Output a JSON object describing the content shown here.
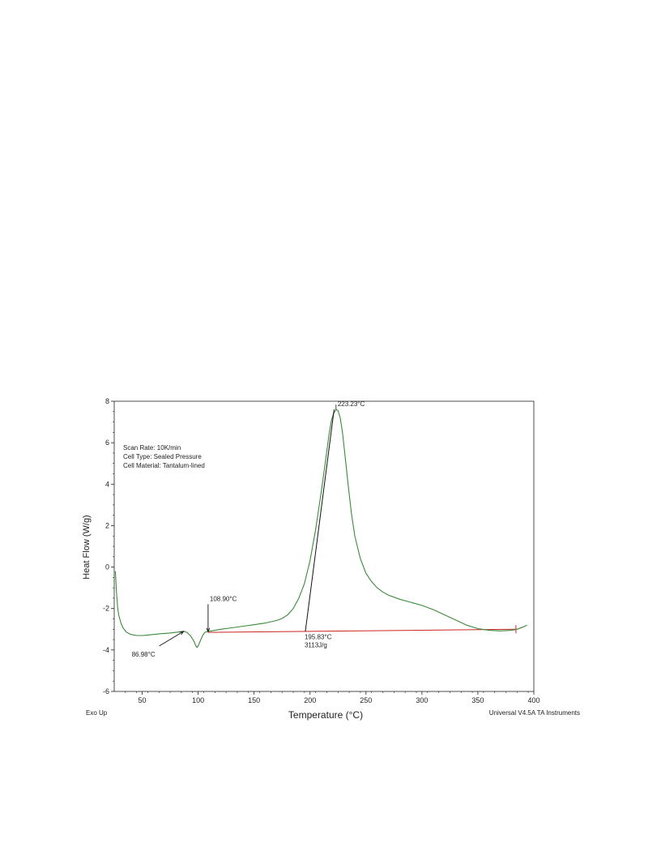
{
  "chart_data": {
    "type": "line",
    "xlabel": "Temperature (°C)",
    "ylabel": "Heat Flow (W/g)",
    "xlim": [
      25,
      400
    ],
    "ylim": [
      -6,
      8
    ],
    "x_ticks": [
      50,
      100,
      150,
      200,
      250,
      300,
      350,
      400
    ],
    "y_ticks": [
      -6,
      -4,
      -2,
      0,
      2,
      4,
      6,
      8
    ],
    "info_text": [
      "Scan Rate: 10K/min",
      "Cell Type: Sealed Pressure",
      "Cell Material: Tantalum-lined"
    ],
    "footer_left": "Exo Up",
    "footer_right": "Universal V4.5A TA Instruments",
    "colors": {
      "curve": "#3a8a3a",
      "ylabel": "#3a8a3a",
      "baseline": "#cc2222",
      "annotation": "#111111"
    },
    "series": [
      {
        "points": [
          [
            26,
            -0.2
          ],
          [
            27,
            -1.2
          ],
          [
            28,
            -1.9
          ],
          [
            29,
            -2.3
          ],
          [
            31,
            -2.7
          ],
          [
            33,
            -2.95
          ],
          [
            36,
            -3.15
          ],
          [
            40,
            -3.25
          ],
          [
            45,
            -3.3
          ],
          [
            50,
            -3.3
          ],
          [
            55,
            -3.28
          ],
          [
            60,
            -3.25
          ],
          [
            65,
            -3.22
          ],
          [
            70,
            -3.2
          ],
          [
            75,
            -3.18
          ],
          [
            80,
            -3.15
          ],
          [
            85,
            -3.12
          ],
          [
            87,
            -3.1
          ],
          [
            90,
            -3.15
          ],
          [
            93,
            -3.3
          ],
          [
            96,
            -3.55
          ],
          [
            98,
            -3.8
          ],
          [
            99,
            -3.88
          ],
          [
            100,
            -3.8
          ],
          [
            102,
            -3.55
          ],
          [
            104,
            -3.3
          ],
          [
            106,
            -3.15
          ],
          [
            108.9,
            -3.1
          ],
          [
            112,
            -3.08
          ],
          [
            120,
            -3.0
          ],
          [
            130,
            -2.93
          ],
          [
            140,
            -2.85
          ],
          [
            150,
            -2.78
          ],
          [
            160,
            -2.7
          ],
          [
            170,
            -2.58
          ],
          [
            175,
            -2.48
          ],
          [
            180,
            -2.3
          ],
          [
            185,
            -2.0
          ],
          [
            190,
            -1.5
          ],
          [
            195,
            -0.8
          ],
          [
            200,
            0.3
          ],
          [
            205,
            1.8
          ],
          [
            210,
            3.6
          ],
          [
            214,
            5.2
          ],
          [
            217,
            6.4
          ],
          [
            219,
            7.05
          ],
          [
            221,
            7.4
          ],
          [
            223.23,
            7.6
          ],
          [
            225,
            7.55
          ],
          [
            227,
            7.2
          ],
          [
            229,
            6.5
          ],
          [
            231,
            5.5
          ],
          [
            234,
            4.0
          ],
          [
            237,
            2.6
          ],
          [
            240,
            1.5
          ],
          [
            245,
            0.4
          ],
          [
            250,
            -0.3
          ],
          [
            255,
            -0.7
          ],
          [
            260,
            -1.0
          ],
          [
            265,
            -1.2
          ],
          [
            270,
            -1.35
          ],
          [
            280,
            -1.55
          ],
          [
            290,
            -1.7
          ],
          [
            300,
            -1.85
          ],
          [
            310,
            -2.05
          ],
          [
            320,
            -2.3
          ],
          [
            330,
            -2.55
          ],
          [
            340,
            -2.8
          ],
          [
            350,
            -2.97
          ],
          [
            360,
            -3.05
          ],
          [
            370,
            -3.08
          ],
          [
            380,
            -3.05
          ],
          [
            385,
            -3.0
          ],
          [
            390,
            -2.9
          ],
          [
            394,
            -2.8
          ]
        ]
      }
    ],
    "baseline": {
      "x": [
        108.9,
        384
      ],
      "y": [
        -3.15,
        -3.0
      ]
    },
    "tangent": {
      "x": [
        195.83,
        221.5
      ],
      "y": [
        -3.1,
        7.6
      ]
    },
    "annotations": [
      {
        "text": "223.23°C",
        "x": 223.23,
        "y": 7.6
      },
      {
        "text": "108.90°C",
        "x": 108.9,
        "y": -3.12
      },
      {
        "text": "86.98°C",
        "x": 86.98,
        "y": -3.1
      },
      {
        "text": "195.83°C",
        "x": 195.83,
        "y": -3.12
      },
      {
        "text": "3113J/g",
        "x": 195.83,
        "y": -3.12
      }
    ]
  }
}
